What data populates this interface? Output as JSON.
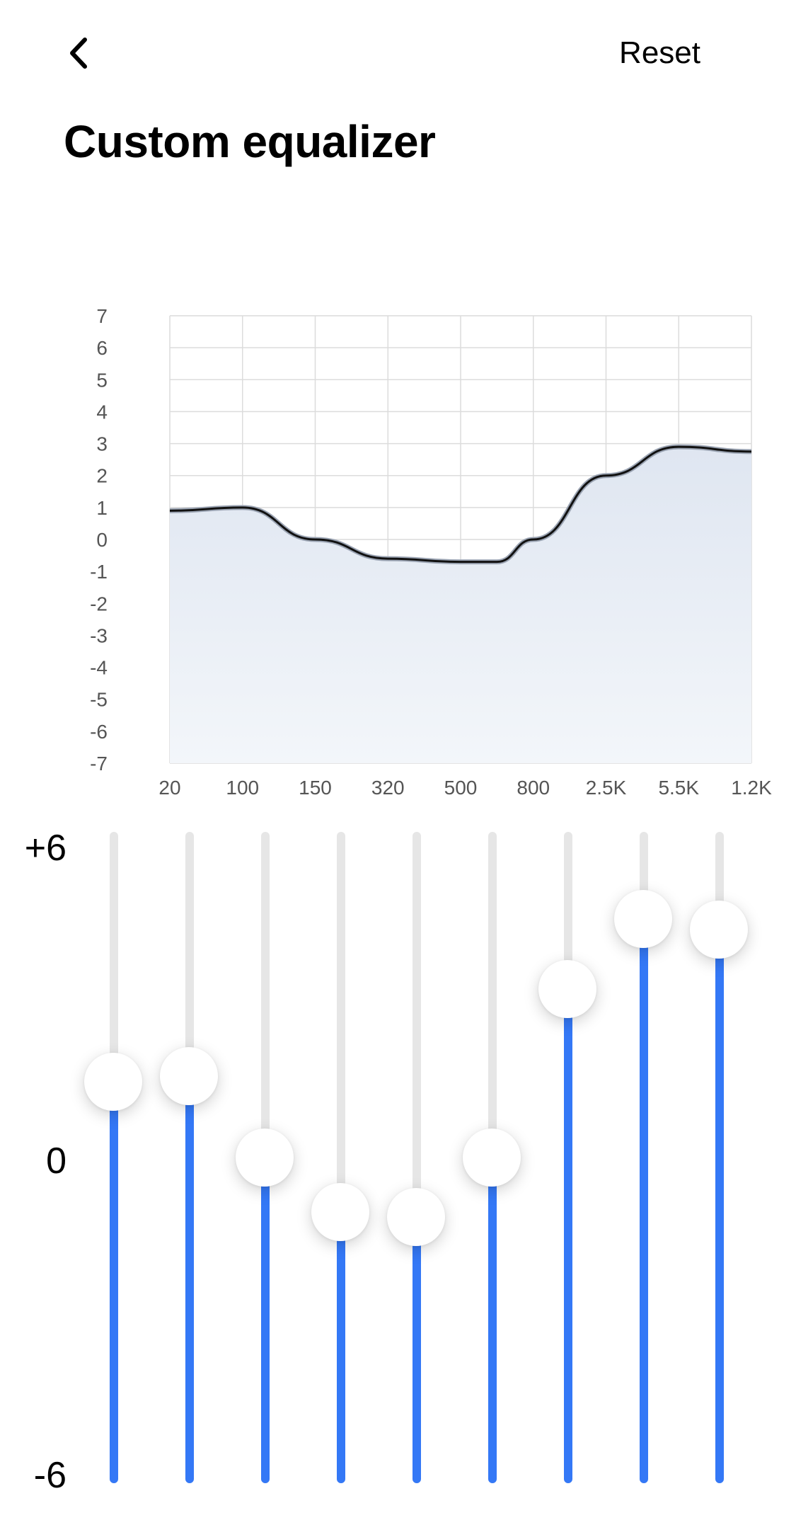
{
  "header": {
    "back_icon": "chevron-left-icon",
    "reset_label": "Reset",
    "title": "Custom equalizer"
  },
  "colors": {
    "accent": "#3478f6",
    "track": "#e6e6e6",
    "curve": "#111111",
    "fill_top": "#dfe6f1",
    "fill_bottom": "#f3f6fa",
    "grid": "#dcdcdc"
  },
  "scale": {
    "top": "+6",
    "middle": "0",
    "bottom": "-6"
  },
  "chart_data": {
    "type": "area",
    "categories": [
      "20",
      "100",
      "150",
      "320",
      "500",
      "800",
      "2.5K",
      "5.5K",
      "1.2K"
    ],
    "y_ticks": [
      "7",
      "6",
      "5",
      "4",
      "3",
      "2",
      "1",
      "0",
      "-1",
      "-2",
      "-3",
      "-4",
      "-5",
      "-6",
      "-7"
    ],
    "ylim": [
      -7,
      7
    ],
    "grid": true,
    "curve_points": [
      [
        0,
        0.9
      ],
      [
        1,
        1.0
      ],
      [
        2,
        0.0
      ],
      [
        3,
        -0.6
      ],
      [
        4,
        -0.7
      ],
      [
        4.5,
        -0.7
      ],
      [
        5,
        0.0
      ],
      [
        6,
        2.0
      ],
      [
        7,
        2.9
      ],
      [
        8,
        2.75
      ]
    ]
  },
  "bands": [
    {
      "label": "20",
      "gain": 1.4
    },
    {
      "label": "100",
      "gain": 1.5
    },
    {
      "label": "150",
      "gain": 0.0
    },
    {
      "label": "320",
      "gain": -1.0
    },
    {
      "label": "500",
      "gain": -1.1
    },
    {
      "label": "800",
      "gain": 0.0
    },
    {
      "label": "2.5K",
      "gain": 3.1
    },
    {
      "label": "5.5K",
      "gain": 4.4
    },
    {
      "label": "1.2K",
      "gain": 4.2
    }
  ]
}
